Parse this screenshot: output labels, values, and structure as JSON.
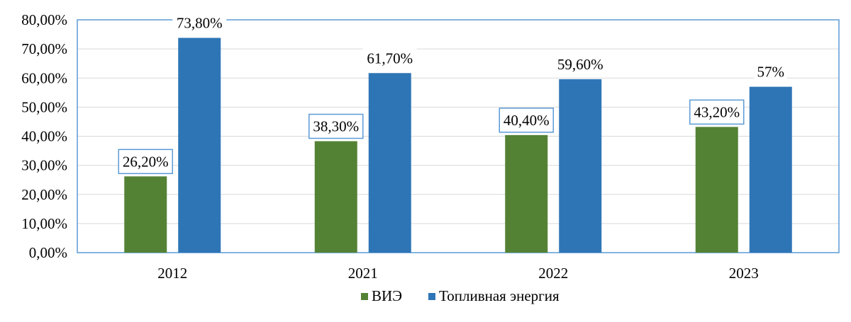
{
  "chart_data": {
    "type": "bar",
    "categories": [
      "2012",
      "2021",
      "2022",
      "2023"
    ],
    "series": [
      {
        "name": "ВИЭ",
        "values": [
          26.2,
          38.3,
          40.4,
          43.2
        ],
        "labels": [
          "26,20%",
          "38,30%",
          "40,40%",
          "43,20%"
        ],
        "color": "#548235"
      },
      {
        "name": "Топливная энергия",
        "values": [
          73.8,
          61.7,
          59.6,
          57
        ],
        "labels": [
          "73,80%",
          "61,70%",
          "59,60%",
          "57%"
        ],
        "color": "#2e75b6"
      }
    ],
    "ylim": [
      0,
      80
    ],
    "yticks": [
      0,
      10,
      20,
      30,
      40,
      50,
      60,
      70,
      80
    ],
    "ytick_labels": [
      "0,00%",
      "10,00%",
      "20,00%",
      "30,00%",
      "40,00%",
      "50,00%",
      "60,00%",
      "70,00%",
      "80,00%"
    ],
    "grid": true,
    "legend": "bottom",
    "title": "",
    "xlabel": "",
    "ylabel": "",
    "colors": {
      "grid": "#d9d9d9",
      "frame": "#5b9bd5",
      "label_box": "#5b9bd5",
      "text": "#000000"
    }
  }
}
